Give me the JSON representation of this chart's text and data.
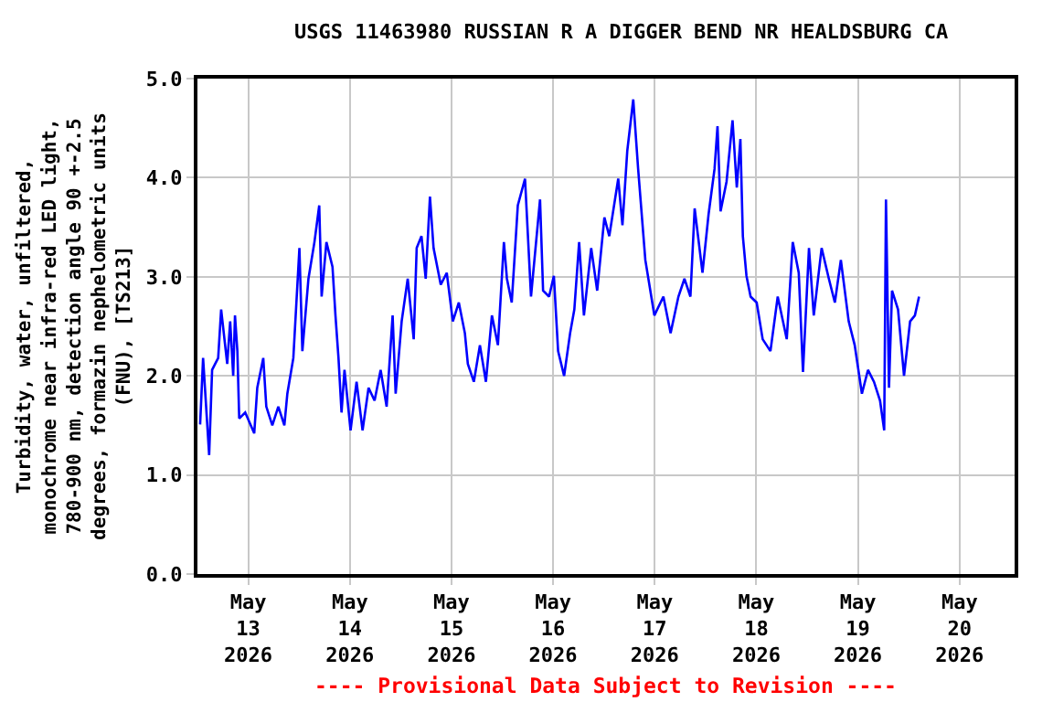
{
  "chart_data": {
    "type": "line",
    "title": "USGS 11463980 RUSSIAN R A DIGGER BEND NR HEALDSBURG CA",
    "ylabel": "Turbidity, water, unfiltered,\nmonochrome near infra-red LED light,\n780-900 nm, detection angle 90 +-2.5\ndegrees, formazin nephelometric units\n(FNU), [TS213]",
    "annotations": [
      "---- Provisional Data Subject to Revision ----"
    ],
    "xlim": [
      "2026-05-12T12:00",
      "2026-05-20T13:00"
    ],
    "xticks": [
      {
        "value": "2026-05-13",
        "label": "May\n13\n2026"
      },
      {
        "value": "2026-05-14",
        "label": "May\n14\n2026"
      },
      {
        "value": "2026-05-15",
        "label": "May\n15\n2026"
      },
      {
        "value": "2026-05-16",
        "label": "May\n16\n2026"
      },
      {
        "value": "2026-05-17",
        "label": "May\n17\n2026"
      },
      {
        "value": "2026-05-18",
        "label": "May\n18\n2026"
      },
      {
        "value": "2026-05-19",
        "label": "May\n19\n2026"
      },
      {
        "value": "2026-05-20",
        "label": "May\n20\n2026"
      }
    ],
    "ylim": [
      0,
      5
    ],
    "yticks": [
      {
        "value": 0,
        "label": "0.0"
      },
      {
        "value": 1,
        "label": "1.0"
      },
      {
        "value": 2,
        "label": "2.0"
      },
      {
        "value": 3,
        "label": "3.0"
      },
      {
        "value": 4,
        "label": "4.0"
      },
      {
        "value": 5,
        "label": "5.0"
      }
    ],
    "grid": true,
    "marker": "none",
    "line_style": "solid",
    "x": [
      "2026-05-12T12:38",
      "2026-05-12T13:20",
      "2026-05-12T14:46",
      "2026-05-12T15:28",
      "2026-05-12T16:54",
      "2026-05-12T17:36",
      "2026-05-12T19:02",
      "2026-05-12T19:44",
      "2026-05-12T20:27",
      "2026-05-12T20:52",
      "2026-05-12T21:26",
      "2026-05-12T21:52",
      "2026-05-12T23:17",
      "2026-05-13T01:25",
      "2026-05-13T02:08",
      "2026-05-13T03:33",
      "2026-05-13T04:16",
      "2026-05-13T05:41",
      "2026-05-13T07:06",
      "2026-05-13T08:32",
      "2026-05-13T09:14",
      "2026-05-13T10:39",
      "2026-05-13T12:05",
      "2026-05-13T12:47",
      "2026-05-13T14:13",
      "2026-05-13T15:38",
      "2026-05-13T16:46",
      "2026-05-13T17:20",
      "2026-05-13T18:28",
      "2026-05-13T19:54",
      "2026-05-13T20:36",
      "2026-05-13T21:19",
      "2026-05-13T22:02",
      "2026-05-13T22:44",
      "2026-05-14T00:10",
      "2026-05-14T01:35",
      "2026-05-14T03:00",
      "2026-05-14T04:25",
      "2026-05-14T05:50",
      "2026-05-14T07:16",
      "2026-05-14T08:41",
      "2026-05-14T10:06",
      "2026-05-14T10:49",
      "2026-05-14T12:14",
      "2026-05-14T13:40",
      "2026-05-14T15:05",
      "2026-05-14T15:47",
      "2026-05-14T16:55",
      "2026-05-14T17:55",
      "2026-05-14T18:55",
      "2026-05-14T19:46",
      "2026-05-14T21:28",
      "2026-05-14T22:53",
      "2026-05-15T00:19",
      "2026-05-15T01:44",
      "2026-05-15T03:10",
      "2026-05-15T03:52",
      "2026-05-15T05:17",
      "2026-05-15T06:43",
      "2026-05-15T08:08",
      "2026-05-15T09:33",
      "2026-05-15T10:58",
      "2026-05-15T12:23",
      "2026-05-15T13:06",
      "2026-05-15T14:14",
      "2026-05-15T15:40",
      "2026-05-15T17:22",
      "2026-05-15T18:47",
      "2026-05-15T20:55",
      "2026-05-15T21:38",
      "2026-05-15T23:03",
      "2026-05-16T00:11",
      "2026-05-16T01:11",
      "2026-05-16T02:36",
      "2026-05-16T04:01",
      "2026-05-16T05:01",
      "2026-05-16T06:09",
      "2026-05-16T07:17",
      "2026-05-16T09:00",
      "2026-05-16T10:25",
      "2026-05-16T12:07",
      "2026-05-16T13:16",
      "2026-05-16T15:23",
      "2026-05-16T16:23",
      "2026-05-16T17:31",
      "2026-05-16T18:56",
      "2026-05-16T20:05",
      "2026-05-16T21:47",
      "2026-05-16T23:55",
      "2026-05-17T02:03",
      "2026-05-17T03:45",
      "2026-05-17T05:36",
      "2026-05-17T07:01",
      "2026-05-17T08:26",
      "2026-05-17T09:26",
      "2026-05-17T11:17",
      "2026-05-17T12:43",
      "2026-05-17T14:08",
      "2026-05-17T14:50",
      "2026-05-17T15:33",
      "2026-05-17T16:58",
      "2026-05-17T18:23",
      "2026-05-17T19:23",
      "2026-05-17T20:14",
      "2026-05-17T20:49",
      "2026-05-17T21:40",
      "2026-05-17T22:39",
      "2026-05-18T00:05",
      "2026-05-18T01:30",
      "2026-05-18T03:20",
      "2026-05-18T05:03",
      "2026-05-18T07:11",
      "2026-05-18T08:36",
      "2026-05-18T10:01",
      "2026-05-18T11:01",
      "2026-05-18T12:26",
      "2026-05-18T13:34",
      "2026-05-18T15:25",
      "2026-05-18T17:08",
      "2026-05-18T18:33",
      "2026-05-18T19:58",
      "2026-05-18T21:49",
      "2026-05-18T23:14",
      "2026-05-19T00:56",
      "2026-05-19T02:22",
      "2026-05-19T03:47",
      "2026-05-19T05:13",
      "2026-05-19T06:12",
      "2026-05-19T06:37",
      "2026-05-19T07:20",
      "2026-05-19T08:03",
      "2026-05-19T09:28",
      "2026-05-19T10:53",
      "2026-05-19T12:19",
      "2026-05-19T13:27",
      "2026-05-19T14:26"
    ],
    "series": [
      {
        "color": "#0000ff",
        "values": [
          1.51,
          2.18,
          1.2,
          2.06,
          2.18,
          2.67,
          2.12,
          2.55,
          2.0,
          2.61,
          2.25,
          1.57,
          1.63,
          1.42,
          1.88,
          2.18,
          1.69,
          1.5,
          1.69,
          1.5,
          1.82,
          2.18,
          3.29,
          2.25,
          2.98,
          3.35,
          3.72,
          2.8,
          3.35,
          3.1,
          2.61,
          2.18,
          1.63,
          2.06,
          1.45,
          1.94,
          1.45,
          1.88,
          1.75,
          2.06,
          1.69,
          2.61,
          1.82,
          2.55,
          2.98,
          2.37,
          3.29,
          3.41,
          2.98,
          3.81,
          3.29,
          2.92,
          3.04,
          2.55,
          2.74,
          2.43,
          2.12,
          1.94,
          2.31,
          1.94,
          2.61,
          2.31,
          3.35,
          2.98,
          2.74,
          3.72,
          3.99,
          2.8,
          3.78,
          2.86,
          2.8,
          3.01,
          2.25,
          2.0,
          2.43,
          2.67,
          3.35,
          2.61,
          3.29,
          2.86,
          3.6,
          3.41,
          3.99,
          3.52,
          4.27,
          4.79,
          4.09,
          3.17,
          2.61,
          2.8,
          2.43,
          2.8,
          2.98,
          2.8,
          3.69,
          3.04,
          3.63,
          4.09,
          4.52,
          3.66,
          3.96,
          4.58,
          3.9,
          4.39,
          3.41,
          3.01,
          2.8,
          2.74,
          2.37,
          2.25,
          2.8,
          2.37,
          3.35,
          3.04,
          2.04,
          3.29,
          2.61,
          3.29,
          2.98,
          2.74,
          3.17,
          2.55,
          2.31,
          1.82,
          2.06,
          1.94,
          1.75,
          1.45,
          3.78,
          1.88,
          2.86,
          2.67,
          2.0,
          2.55,
          2.61,
          2.8
        ]
      }
    ]
  }
}
